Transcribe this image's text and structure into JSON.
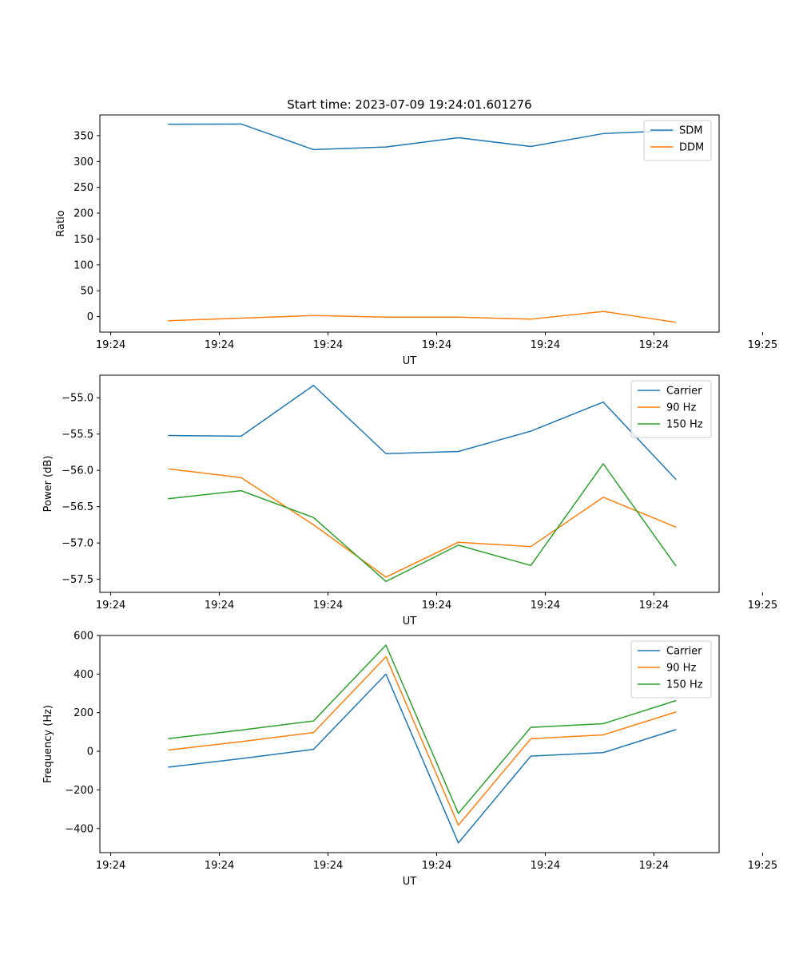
{
  "figure": {
    "title": "Start time: 2023-07-09 19:24:01.601276",
    "colors": {
      "blue": "#1f77b4",
      "orange": "#ff7f0e",
      "green": "#2ca02c"
    }
  },
  "chart_data": [
    {
      "type": "line",
      "name": "ratio",
      "title": "Start time: 2023-07-09 19:24:01.601276",
      "xlabel": "UT",
      "ylabel": "Ratio",
      "x": [
        1,
        2,
        3,
        4,
        5,
        6,
        7,
        8
      ],
      "xlim": [
        0.05,
        8.6
      ],
      "xticks": [
        0.2,
        1.7,
        3.2,
        4.7,
        6.2,
        7.7,
        9.2
      ],
      "xtick_labels": [
        "19:24",
        "19:24",
        "19:24",
        "19:24",
        "19:24",
        "19:24",
        "19:25"
      ],
      "ylim": [
        -30,
        390
      ],
      "yticks": [
        0,
        50,
        100,
        150,
        200,
        250,
        300,
        350
      ],
      "ytick_labels": [
        "0",
        "50",
        "100",
        "150",
        "200",
        "250",
        "300",
        "350"
      ],
      "legend": "top-right",
      "series": [
        {
          "name": "SDM",
          "color": "#1f77b4",
          "values": [
            372,
            372.5,
            323,
            328,
            346,
            329,
            354,
            360
          ]
        },
        {
          "name": "DDM",
          "color": "#ff7f0e",
          "values": [
            -8,
            -3,
            2,
            -1,
            -1,
            -5,
            10,
            -11
          ]
        }
      ]
    },
    {
      "type": "line",
      "name": "power",
      "title": "",
      "xlabel": "UT",
      "ylabel": "Power (dB)",
      "x": [
        1,
        2,
        3,
        4,
        5,
        6,
        7,
        8
      ],
      "xlim": [
        0.05,
        8.6
      ],
      "xticks": [
        0.2,
        1.7,
        3.2,
        4.7,
        6.2,
        7.7,
        9.2
      ],
      "xtick_labels": [
        "19:24",
        "19:24",
        "19:24",
        "19:24",
        "19:24",
        "19:24",
        "19:25"
      ],
      "ylim": [
        -57.68,
        -54.69
      ],
      "yticks": [
        -55.0,
        -55.5,
        -56.0,
        -56.5,
        -57.0,
        -57.5
      ],
      "ytick_labels": [
        "−55.0",
        "−55.5",
        "−56.0",
        "−56.5",
        "−57.0",
        "−57.5"
      ],
      "legend": "top-right",
      "series": [
        {
          "name": "Carrier",
          "color": "#1f77b4",
          "values": [
            -55.52,
            -55.53,
            -54.83,
            -55.77,
            -55.74,
            -55.46,
            -55.06,
            -56.12
          ]
        },
        {
          "name": "90 Hz",
          "color": "#ff7f0e",
          "values": [
            -55.98,
            -56.1,
            -56.75,
            -57.47,
            -56.99,
            -57.05,
            -56.37,
            -56.78
          ]
        },
        {
          "name": "150 Hz",
          "color": "#2ca02c",
          "values": [
            -56.39,
            -56.28,
            -56.65,
            -57.53,
            -57.03,
            -57.31,
            -55.91,
            -57.31
          ]
        }
      ]
    },
    {
      "type": "line",
      "name": "frequency",
      "title": "",
      "xlabel": "UT",
      "ylabel": "Frequency (Hz)",
      "x": [
        1,
        2,
        3,
        4,
        5,
        6,
        7,
        8
      ],
      "xlim": [
        0.05,
        8.6
      ],
      "xticks": [
        0.2,
        1.7,
        3.2,
        4.7,
        6.2,
        7.7,
        9.2
      ],
      "xtick_labels": [
        "19:24",
        "19:24",
        "19:24",
        "19:24",
        "19:24",
        "19:24",
        "19:25"
      ],
      "ylim": [
        -525,
        600
      ],
      "yticks": [
        600,
        400,
        200,
        0,
        -200,
        -400
      ],
      "ytick_labels": [
        "600",
        "400",
        "200",
        "0",
        "−200",
        "−400"
      ],
      "legend": "top-right",
      "series": [
        {
          "name": "Carrier",
          "color": "#1f77b4",
          "values": [
            -82,
            -38,
            10,
            400,
            -475,
            -25,
            -7,
            112
          ]
        },
        {
          "name": "90 Hz",
          "color": "#ff7f0e",
          "values": [
            7,
            50,
            97,
            490,
            -383,
            65,
            85,
            203
          ]
        },
        {
          "name": "150 Hz",
          "color": "#2ca02c",
          "values": [
            66,
            110,
            157,
            550,
            -322,
            124,
            143,
            262
          ]
        }
      ]
    }
  ]
}
